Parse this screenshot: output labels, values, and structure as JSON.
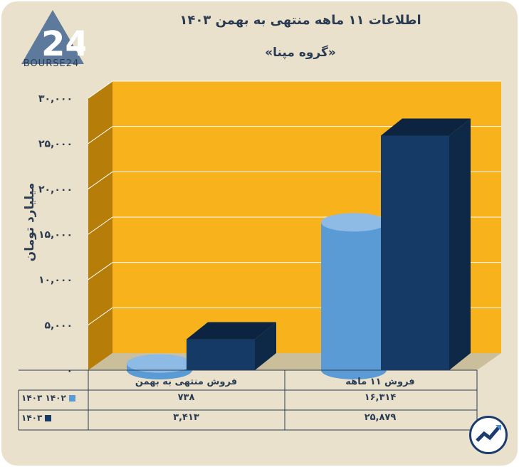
{
  "title": "اطلاعات ۱۱ ماهه منتهی به بهمن ۱۴۰۳",
  "subtitle": "«گروه مپنا»",
  "logo_text": "BOURSE24",
  "colors": {
    "series_1402": "#5b9bd5",
    "series_1403": "#163a66",
    "plot_bg": "#f7b21c"
  },
  "chart_data": {
    "type": "bar",
    "categories": [
      "فروش منتهی به بهمن",
      "فروش ۱۱ ماهه"
    ],
    "series": [
      {
        "name": "۱۴۰۲ ۱۴۰۳",
        "values": [
          738,
          16314
        ],
        "labels": [
          "۷۳۸",
          "۱۶,۳۱۴"
        ]
      },
      {
        "name": "۱۴۰۳",
        "values": [
          3413,
          25879
        ],
        "labels": [
          "۳,۴۱۳",
          "۲۵,۸۷۹"
        ]
      }
    ],
    "ylabel": "میلیارد تومان",
    "ylim": [
      0,
      30000
    ],
    "yticks": [
      "۰",
      "۵,۰۰۰",
      "۱۰,۰۰۰",
      "۱۵,۰۰۰",
      "۲۰,۰۰۰",
      "۲۵,۰۰۰",
      "۳۰,۰۰۰"
    ],
    "grid": true,
    "legend": "table-bottom"
  }
}
